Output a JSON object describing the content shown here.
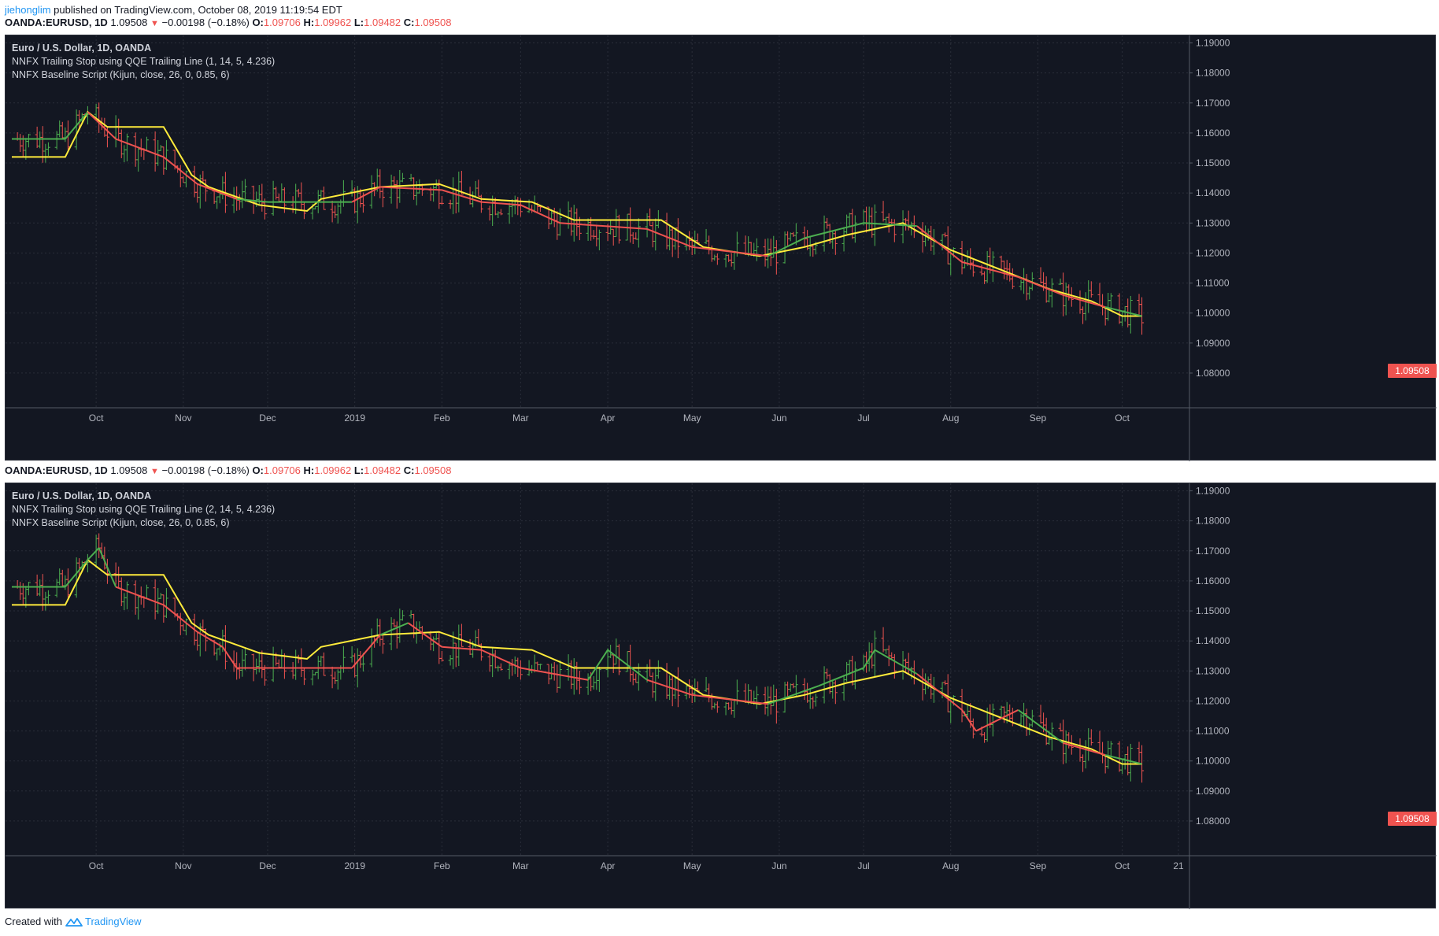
{
  "publish": {
    "author": "jiehonglim",
    "text": " published on TradingView.com, October 08, 2019 11:19:54 EDT"
  },
  "ohlc": {
    "symbol": "OANDA:EURUSD, 1D",
    "last": "1.09508",
    "change": "−0.00198 (−0.18%)",
    "o_label": "O:",
    "o": "1.09706",
    "h_label": "H:",
    "h": "1.09962",
    "l_label": "L:",
    "l": "1.09482",
    "c_label": "C:",
    "c": "1.09508"
  },
  "panels": [
    {
      "legend_title": "Euro / U.S. Dollar, 1D, OANDA",
      "legend_line2": "NNFX Trailing Stop using QQE Trailing Line (1, 14, 5, 4.236)",
      "legend_line3": "NNFX Baseline Script (Kijun, close, 26, 0, 0.85, 6)",
      "price_tag": "1.09508"
    },
    {
      "legend_title": "Euro / U.S. Dollar, 1D, OANDA",
      "legend_line2": "NNFX Trailing Stop using QQE Trailing Line (2, 14, 5, 4.236)",
      "legend_line3": "NNFX Baseline Script (Kijun, close, 26, 0, 0.85, 6)",
      "price_tag": "1.09508"
    }
  ],
  "footer": {
    "created_with": "Created with",
    "brand": "TradingView"
  },
  "colors": {
    "background": "#131722",
    "up": "#4caf50",
    "down": "#ef5350",
    "trailing_stop": "#ffeb3b",
    "grid": "#2a2e39"
  },
  "chart_data": [
    {
      "type": "ohlc",
      "series": [
        {
          "name": "OANDA:EURUSD, 1D"
        },
        {
          "name": "NNFX Trailing Stop using QQE Trailing Line (1, 14, 5, 4.236)"
        },
        {
          "name": "NNFX Baseline Script (Kijun, close, 26, 0, 0.85, 6)"
        }
      ],
      "ylim": [
        1.075,
        1.1925
      ],
      "y_ticks": [
        "1.19000",
        "1.18000",
        "1.17000",
        "1.16000",
        "1.15000",
        "1.14000",
        "1.13000",
        "1.12000",
        "1.11000",
        "1.10000",
        "1.09000",
        "1.08000"
      ],
      "x_ticks": [
        "Oct",
        "Nov",
        "Dec",
        "2019",
        "Feb",
        "Mar",
        "Apr",
        "May",
        "Jun",
        "Jul",
        "Aug",
        "Sep",
        "Oct"
      ],
      "grid": true,
      "trailing_line": [
        {
          "date": "2018-09-01",
          "value": 1.152
        },
        {
          "date": "2018-09-20",
          "value": 1.152
        },
        {
          "date": "2018-09-28",
          "value": 1.167
        },
        {
          "date": "2018-10-05",
          "value": 1.162
        },
        {
          "date": "2018-10-25",
          "value": 1.162
        },
        {
          "date": "2018-11-04",
          "value": 1.146
        },
        {
          "date": "2018-11-10",
          "value": 1.142
        },
        {
          "date": "2018-11-28",
          "value": 1.136
        },
        {
          "date": "2018-12-15",
          "value": 1.134
        },
        {
          "date": "2018-12-20",
          "value": 1.138
        },
        {
          "date": "2019-01-10",
          "value": 1.142
        },
        {
          "date": "2019-01-31",
          "value": 1.143
        },
        {
          "date": "2019-02-15",
          "value": 1.138
        },
        {
          "date": "2019-03-05",
          "value": 1.137
        },
        {
          "date": "2019-03-20",
          "value": 1.131
        },
        {
          "date": "2019-04-20",
          "value": 1.131
        },
        {
          "date": "2019-05-05",
          "value": 1.122
        },
        {
          "date": "2019-05-25",
          "value": 1.119
        },
        {
          "date": "2019-06-10",
          "value": 1.122
        },
        {
          "date": "2019-06-25",
          "value": 1.126
        },
        {
          "date": "2019-07-15",
          "value": 1.13
        },
        {
          "date": "2019-08-01",
          "value": 1.121
        },
        {
          "date": "2019-08-20",
          "value": 1.114
        },
        {
          "date": "2019-09-05",
          "value": 1.108
        },
        {
          "date": "2019-09-20",
          "value": 1.104
        },
        {
          "date": "2019-10-01",
          "value": 1.099
        },
        {
          "date": "2019-10-08",
          "value": 1.099
        }
      ],
      "baseline": [
        {
          "date": "2018-09-01",
          "value": 1.158
        },
        {
          "date": "2018-09-20",
          "value": 1.158
        },
        {
          "date": "2018-09-28",
          "value": 1.167
        },
        {
          "date": "2018-10-08",
          "value": 1.158
        },
        {
          "date": "2018-10-25",
          "value": 1.152
        },
        {
          "date": "2018-11-06",
          "value": 1.143
        },
        {
          "date": "2018-11-20",
          "value": 1.138
        },
        {
          "date": "2018-12-01",
          "value": 1.137
        },
        {
          "date": "2018-12-31",
          "value": 1.137
        },
        {
          "date": "2019-01-10",
          "value": 1.142
        },
        {
          "date": "2019-02-01",
          "value": 1.141
        },
        {
          "date": "2019-02-15",
          "value": 1.137
        },
        {
          "date": "2019-03-01",
          "value": 1.136
        },
        {
          "date": "2019-03-15",
          "value": 1.13
        },
        {
          "date": "2019-04-15",
          "value": 1.128
        },
        {
          "date": "2019-05-01",
          "value": 1.122
        },
        {
          "date": "2019-05-28",
          "value": 1.119
        },
        {
          "date": "2019-06-10",
          "value": 1.125
        },
        {
          "date": "2019-07-01",
          "value": 1.13
        },
        {
          "date": "2019-07-20",
          "value": 1.129
        },
        {
          "date": "2019-08-05",
          "value": 1.117
        },
        {
          "date": "2019-08-25",
          "value": 1.112
        },
        {
          "date": "2019-09-10",
          "value": 1.106
        },
        {
          "date": "2019-09-25",
          "value": 1.102
        },
        {
          "date": "2019-10-08",
          "value": 1.099
        }
      ]
    },
    {
      "type": "ohlc",
      "series": [
        {
          "name": "OANDA:EURUSD, 1D"
        },
        {
          "name": "NNFX Trailing Stop using QQE Trailing Line (2, 14, 5, 4.236)"
        },
        {
          "name": "NNFX Baseline Script (Kijun, close, 26, 0, 0.85, 6)"
        }
      ],
      "ylim": [
        1.075,
        1.1925
      ],
      "y_ticks": [
        "1.19000",
        "1.18000",
        "1.17000",
        "1.16000",
        "1.15000",
        "1.14000",
        "1.13000",
        "1.12000",
        "1.11000",
        "1.10000",
        "1.09000",
        "1.08000"
      ],
      "x_ticks": [
        "Oct",
        "Nov",
        "Dec",
        "2019",
        "Feb",
        "Mar",
        "Apr",
        "May",
        "Jun",
        "Jul",
        "Aug",
        "Sep",
        "Oct",
        "21"
      ],
      "grid": true,
      "trailing_line": [
        {
          "date": "2018-09-01",
          "value": 1.152
        },
        {
          "date": "2018-09-20",
          "value": 1.152
        },
        {
          "date": "2018-09-28",
          "value": 1.167
        },
        {
          "date": "2018-10-05",
          "value": 1.162
        },
        {
          "date": "2018-10-25",
          "value": 1.162
        },
        {
          "date": "2018-11-04",
          "value": 1.146
        },
        {
          "date": "2018-11-10",
          "value": 1.142
        },
        {
          "date": "2018-11-28",
          "value": 1.136
        },
        {
          "date": "2018-12-15",
          "value": 1.134
        },
        {
          "date": "2018-12-20",
          "value": 1.138
        },
        {
          "date": "2019-01-10",
          "value": 1.142
        },
        {
          "date": "2019-01-31",
          "value": 1.143
        },
        {
          "date": "2019-02-15",
          "value": 1.138
        },
        {
          "date": "2019-03-05",
          "value": 1.137
        },
        {
          "date": "2019-03-20",
          "value": 1.131
        },
        {
          "date": "2019-04-20",
          "value": 1.131
        },
        {
          "date": "2019-05-05",
          "value": 1.122
        },
        {
          "date": "2019-05-25",
          "value": 1.119
        },
        {
          "date": "2019-06-10",
          "value": 1.122
        },
        {
          "date": "2019-06-25",
          "value": 1.126
        },
        {
          "date": "2019-07-15",
          "value": 1.13
        },
        {
          "date": "2019-08-01",
          "value": 1.121
        },
        {
          "date": "2019-08-20",
          "value": 1.114
        },
        {
          "date": "2019-09-05",
          "value": 1.108
        },
        {
          "date": "2019-09-20",
          "value": 1.104
        },
        {
          "date": "2019-10-01",
          "value": 1.099
        },
        {
          "date": "2019-10-08",
          "value": 1.099
        }
      ],
      "baseline": [
        {
          "date": "2018-09-01",
          "value": 1.158
        },
        {
          "date": "2018-09-20",
          "value": 1.158
        },
        {
          "date": "2018-09-28",
          "value": 1.167
        },
        {
          "date": "2018-10-02",
          "value": 1.171
        },
        {
          "date": "2018-10-08",
          "value": 1.158
        },
        {
          "date": "2018-10-25",
          "value": 1.152
        },
        {
          "date": "2018-11-06",
          "value": 1.143
        },
        {
          "date": "2018-11-15",
          "value": 1.138
        },
        {
          "date": "2018-11-20",
          "value": 1.131
        },
        {
          "date": "2018-12-31",
          "value": 1.131
        },
        {
          "date": "2019-01-10",
          "value": 1.142
        },
        {
          "date": "2019-01-20",
          "value": 1.146
        },
        {
          "date": "2019-02-01",
          "value": 1.138
        },
        {
          "date": "2019-02-15",
          "value": 1.137
        },
        {
          "date": "2019-03-01",
          "value": 1.131
        },
        {
          "date": "2019-03-25",
          "value": 1.127
        },
        {
          "date": "2019-04-01",
          "value": 1.137
        },
        {
          "date": "2019-04-15",
          "value": 1.127
        },
        {
          "date": "2019-05-01",
          "value": 1.122
        },
        {
          "date": "2019-05-28",
          "value": 1.119
        },
        {
          "date": "2019-06-15",
          "value": 1.125
        },
        {
          "date": "2019-07-01",
          "value": 1.131
        },
        {
          "date": "2019-07-05",
          "value": 1.137
        },
        {
          "date": "2019-07-20",
          "value": 1.129
        },
        {
          "date": "2019-08-05",
          "value": 1.117
        },
        {
          "date": "2019-08-10",
          "value": 1.11
        },
        {
          "date": "2019-08-25",
          "value": 1.117
        },
        {
          "date": "2019-09-10",
          "value": 1.106
        },
        {
          "date": "2019-09-25",
          "value": 1.102
        },
        {
          "date": "2019-10-08",
          "value": 1.099
        }
      ]
    }
  ]
}
